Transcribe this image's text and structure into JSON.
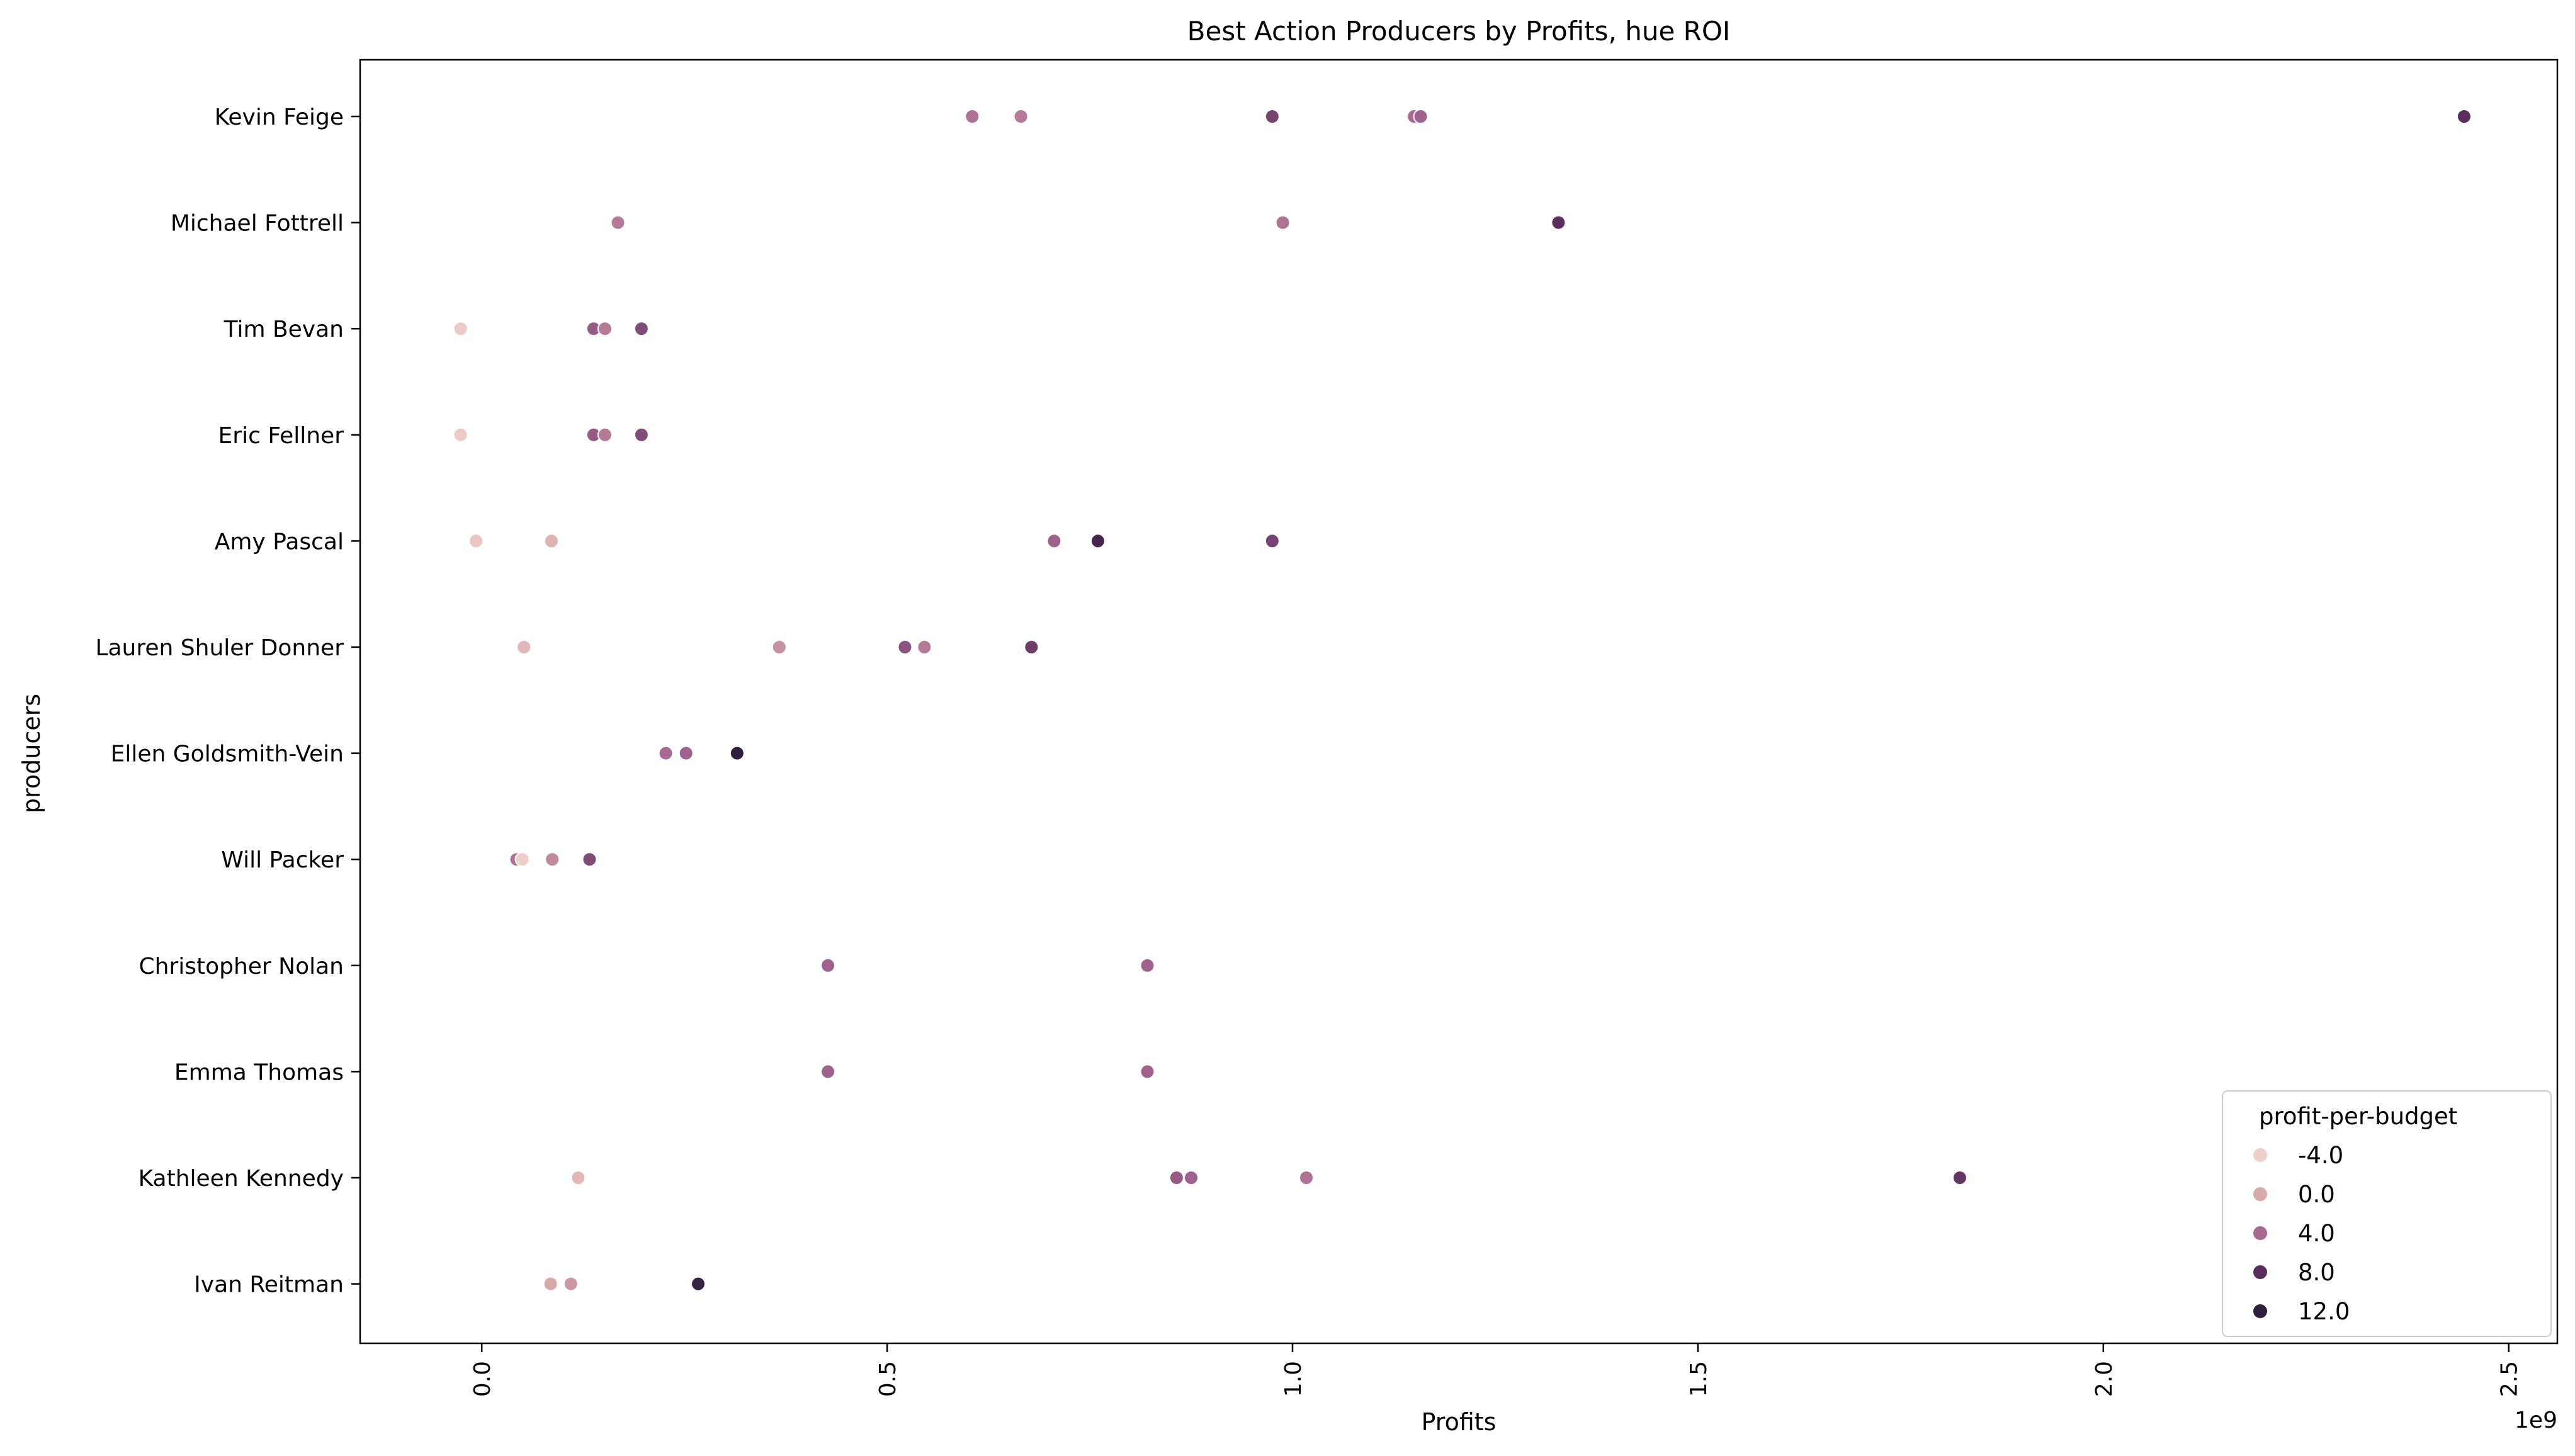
{
  "chart_data": {
    "type": "scatter",
    "title": "Best Action Producers by Profits, hue ROI",
    "xlabel": "Profits",
    "ylabel": "producers",
    "x_offset_label": "1e9",
    "x_scale": 1000000000,
    "xlim": [
      -0.15,
      2.56
    ],
    "xticks": [
      0.0,
      0.5,
      1.0,
      1.5,
      2.0,
      2.5
    ],
    "xtick_labels": [
      "0.0",
      "0.5",
      "1.0",
      "1.5",
      "2.0",
      "2.5"
    ],
    "categories": [
      "Kevin Feige",
      "Michael Fottrell",
      "Tim Bevan",
      "Eric Fellner",
      "Amy Pascal",
      "Lauren Shuler Donner",
      "Ellen Goldsmith-Vein",
      "Will Packer",
      "Christopher Nolan",
      "Emma Thomas",
      "Kathleen Kennedy",
      "Ivan Reitman"
    ],
    "grid": false,
    "legend": {
      "title": "profit-per-budget",
      "placement": "lower-right",
      "entries": [
        {
          "label": "-4.0",
          "value": -4,
          "color": "#efd0c9"
        },
        {
          "label": "0.0",
          "value": 0,
          "color": "#d8a9a9"
        },
        {
          "label": "4.0",
          "value": 4,
          "color": "#a86a92"
        },
        {
          "label": "8.0",
          "value": 8,
          "color": "#5a2d5e"
        },
        {
          "label": "12.0",
          "value": 12,
          "color": "#2d1e3e"
        }
      ]
    },
    "hue_range": [
      -4,
      12
    ],
    "points": [
      {
        "producer": "Kevin Feige",
        "x": 0.605,
        "roi": 3.5
      },
      {
        "producer": "Kevin Feige",
        "x": 0.665,
        "roi": 3.0
      },
      {
        "producer": "Kevin Feige",
        "x": 0.975,
        "roi": 6.5
      },
      {
        "producer": "Kevin Feige",
        "x": 1.15,
        "roi": 4.0
      },
      {
        "producer": "Kevin Feige",
        "x": 1.158,
        "roi": 4.5
      },
      {
        "producer": "Kevin Feige",
        "x": 2.445,
        "roi": 8.0
      },
      {
        "producer": "Michael Fottrell",
        "x": 0.168,
        "roi": 3.0
      },
      {
        "producer": "Michael Fottrell",
        "x": 0.988,
        "roi": 3.5
      },
      {
        "producer": "Michael Fottrell",
        "x": 1.328,
        "roi": 8.0
      },
      {
        "producer": "Tim Bevan",
        "x": -0.026,
        "roi": -3.5
      },
      {
        "producer": "Tim Bevan",
        "x": 0.138,
        "roi": 5.0
      },
      {
        "producer": "Tim Bevan",
        "x": 0.152,
        "roi": 3.0
      },
      {
        "producer": "Tim Bevan",
        "x": 0.197,
        "roi": 6.0
      },
      {
        "producer": "Eric Fellner",
        "x": -0.026,
        "roi": -3.5
      },
      {
        "producer": "Eric Fellner",
        "x": 0.138,
        "roi": 5.0
      },
      {
        "producer": "Eric Fellner",
        "x": 0.152,
        "roi": 3.0
      },
      {
        "producer": "Eric Fellner",
        "x": 0.197,
        "roi": 6.0
      },
      {
        "producer": "Amy Pascal",
        "x": -0.007,
        "roi": -3.0
      },
      {
        "producer": "Amy Pascal",
        "x": 0.086,
        "roi": -1.0
      },
      {
        "producer": "Amy Pascal",
        "x": 0.706,
        "roi": 4.5
      },
      {
        "producer": "Amy Pascal",
        "x": 0.76,
        "roi": 10.0
      },
      {
        "producer": "Amy Pascal",
        "x": 0.975,
        "roi": 6.5
      },
      {
        "producer": "Lauren Shuler Donner",
        "x": 0.052,
        "roi": -1.5
      },
      {
        "producer": "Lauren Shuler Donner",
        "x": 0.367,
        "roi": 1.5
      },
      {
        "producer": "Lauren Shuler Donner",
        "x": 0.522,
        "roi": 5.5
      },
      {
        "producer": "Lauren Shuler Donner",
        "x": 0.546,
        "roi": 3.0
      },
      {
        "producer": "Lauren Shuler Donner",
        "x": 0.678,
        "roi": 7.0
      },
      {
        "producer": "Ellen Goldsmith-Vein",
        "x": 0.227,
        "roi": 4.0
      },
      {
        "producer": "Ellen Goldsmith-Vein",
        "x": 0.252,
        "roi": 4.5
      },
      {
        "producer": "Ellen Goldsmith-Vein",
        "x": 0.315,
        "roi": 12.0
      },
      {
        "producer": "Will Packer",
        "x": 0.043,
        "roi": 3.5
      },
      {
        "producer": "Will Packer",
        "x": 0.05,
        "roi": -4.0
      },
      {
        "producer": "Will Packer",
        "x": 0.087,
        "roi": 2.0
      },
      {
        "producer": "Will Packer",
        "x": 0.133,
        "roi": 6.0
      },
      {
        "producer": "Christopher Nolan",
        "x": 0.427,
        "roi": 4.5
      },
      {
        "producer": "Christopher Nolan",
        "x": 0.821,
        "roi": 4.5
      },
      {
        "producer": "Emma Thomas",
        "x": 0.427,
        "roi": 4.5
      },
      {
        "producer": "Emma Thomas",
        "x": 0.821,
        "roi": 4.5
      },
      {
        "producer": "Kathleen Kennedy",
        "x": 0.119,
        "roi": -1.5
      },
      {
        "producer": "Kathleen Kennedy",
        "x": 0.857,
        "roi": 5.0
      },
      {
        "producer": "Kathleen Kennedy",
        "x": 0.875,
        "roi": 4.5
      },
      {
        "producer": "Kathleen Kennedy",
        "x": 1.017,
        "roi": 3.5
      },
      {
        "producer": "Kathleen Kennedy",
        "x": 1.823,
        "roi": 7.5
      },
      {
        "producer": "Ivan Reitman",
        "x": 0.085,
        "roi": 0.0
      },
      {
        "producer": "Ivan Reitman",
        "x": 0.11,
        "roi": 1.0
      },
      {
        "producer": "Ivan Reitman",
        "x": 0.267,
        "roi": 11.0
      }
    ]
  }
}
